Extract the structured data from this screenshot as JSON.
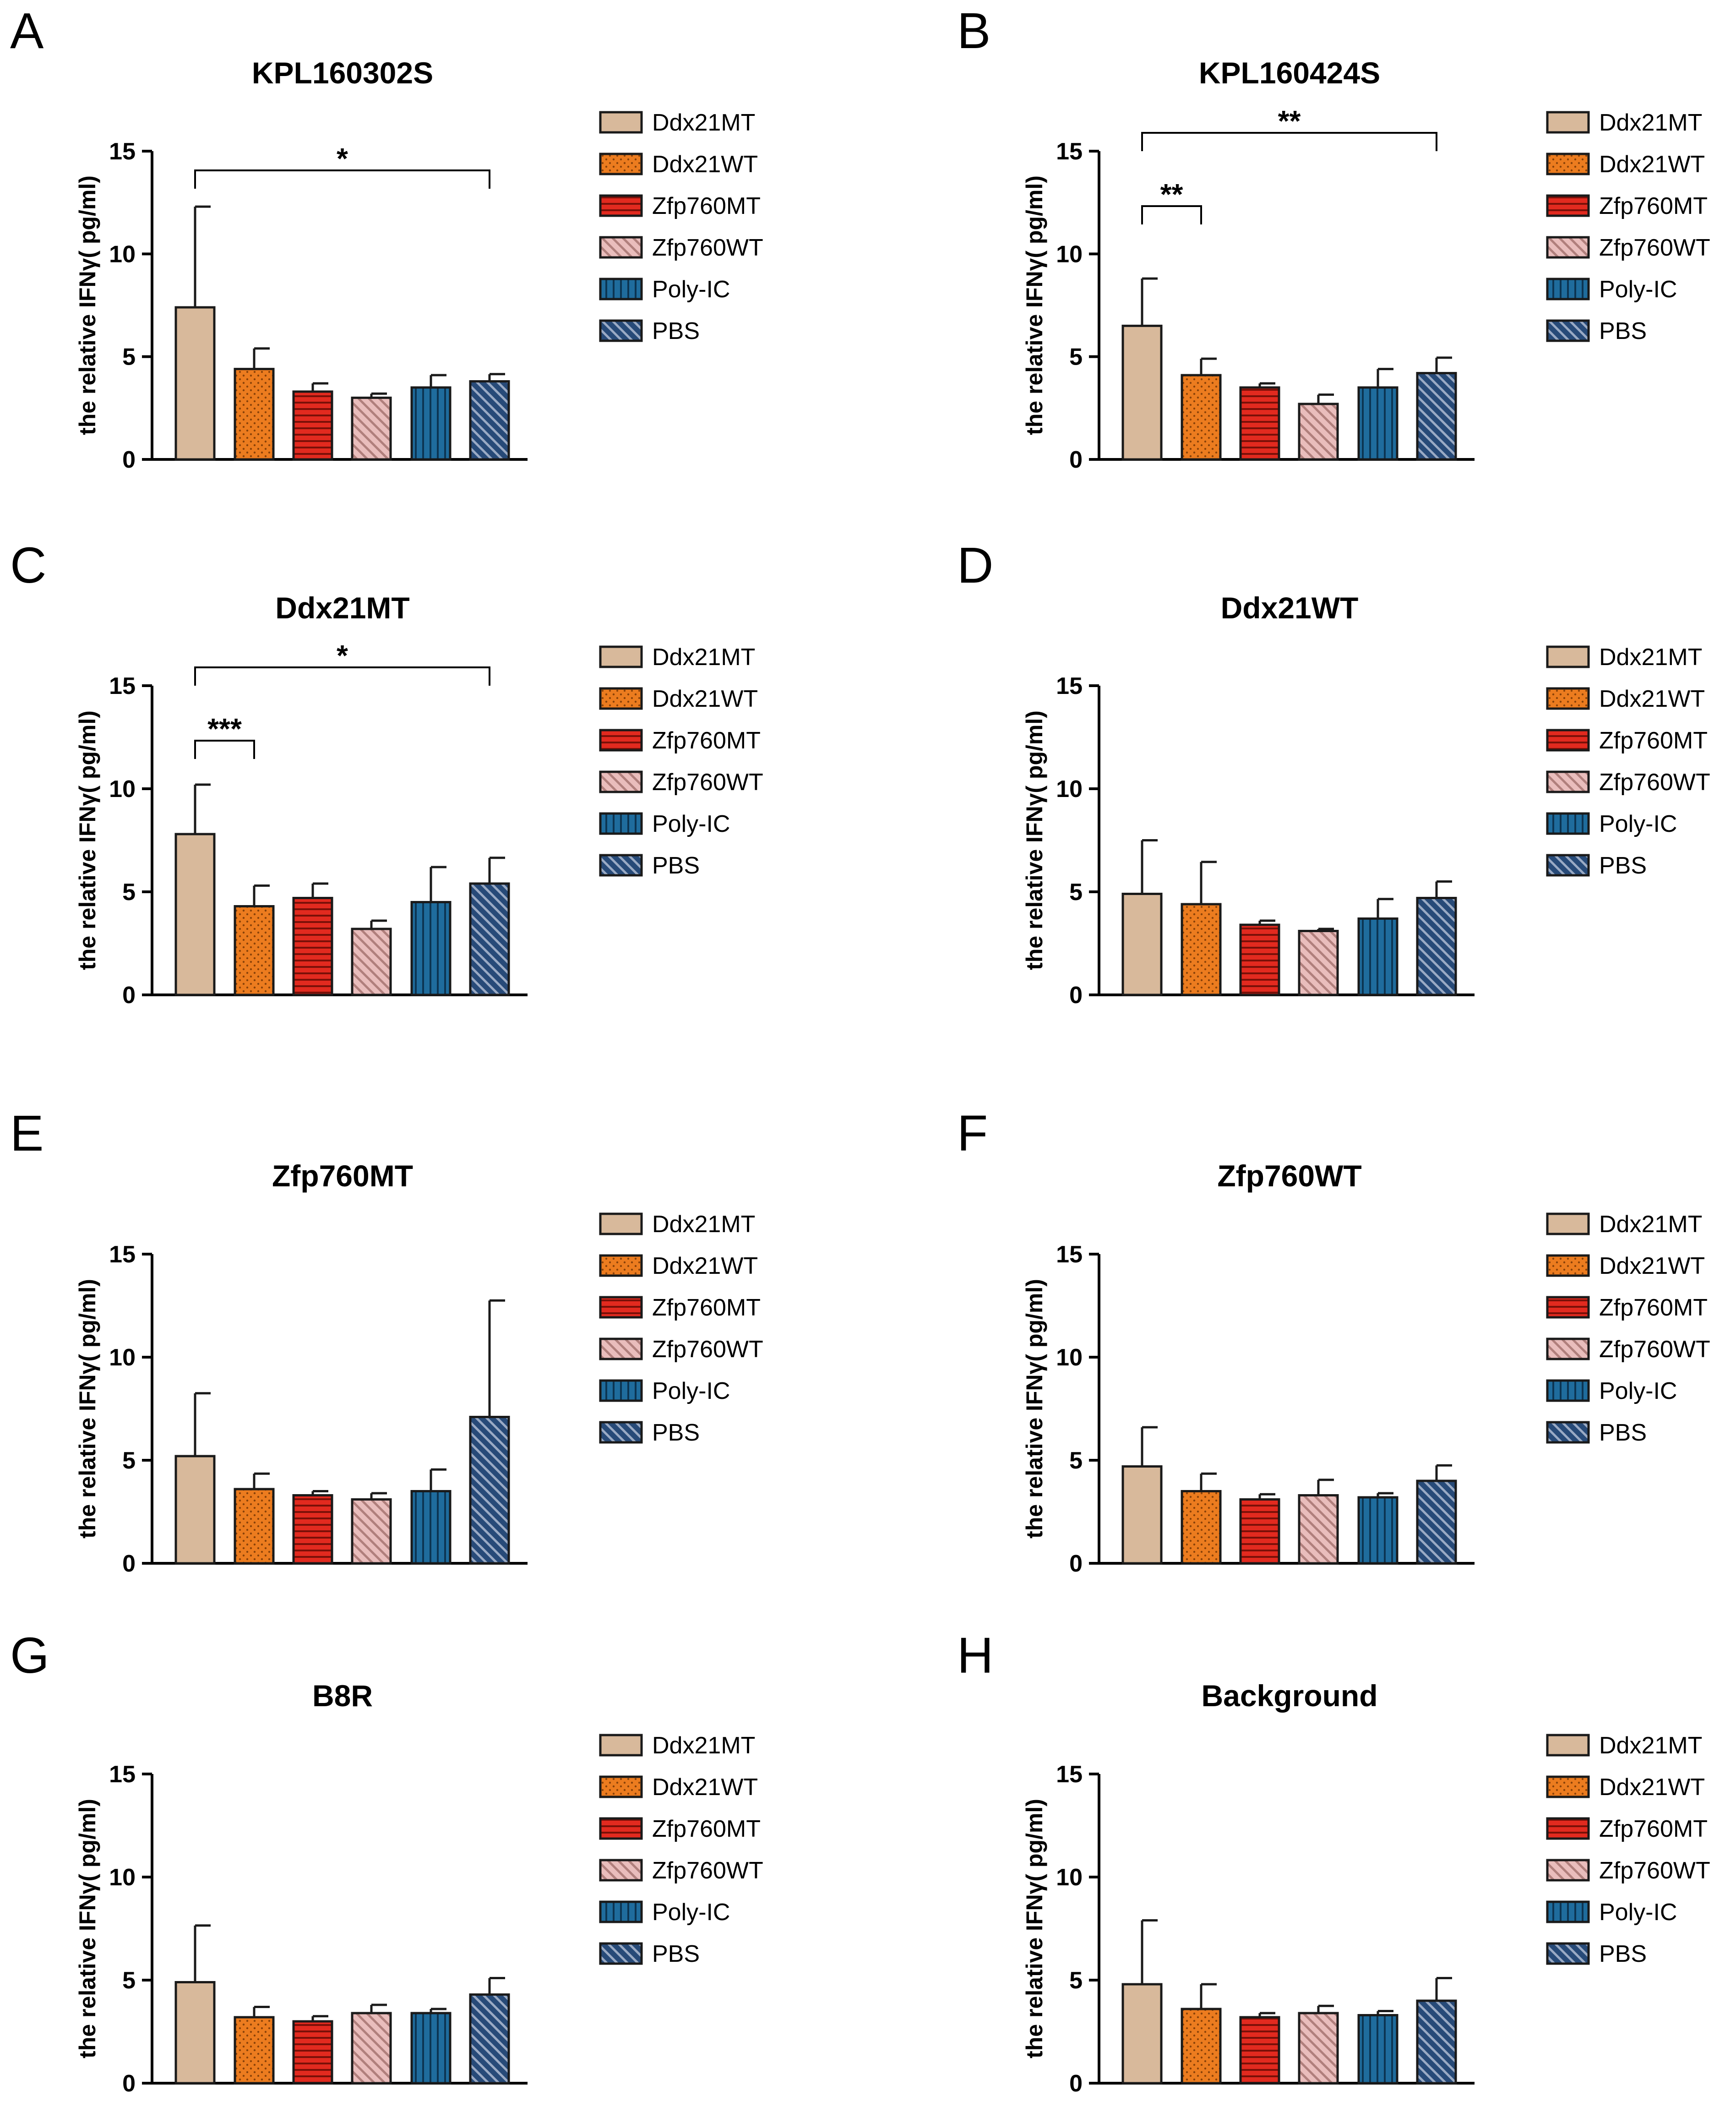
{
  "chart_data": [
    {
      "panel": "A",
      "type": "bar",
      "title": "KPL160302S",
      "ylabel": "the relative IFNγ( pg/ml)",
      "ylim": [
        0,
        15
      ],
      "yticks": [
        "0",
        "5",
        "10",
        "15"
      ],
      "categories": [
        "Ddx21MT",
        "Ddx21WT",
        "Zfp760MT",
        "Zfp760WT",
        "Poly-IC",
        "PBS"
      ],
      "values": [
        7.4,
        4.4,
        3.3,
        3.0,
        3.5,
        3.8
      ],
      "errors": [
        4.9,
        1.0,
        0.4,
        0.2,
        0.6,
        0.35
      ],
      "legend": [
        "Ddx21MT",
        "Ddx21WT",
        "Zfp760MT",
        "Zfp760WT",
        "Poly-IC",
        "PBS"
      ],
      "significance": [
        {
          "from": 0,
          "to": 5,
          "label": "*"
        }
      ]
    },
    {
      "panel": "B",
      "type": "bar",
      "title": "KPL160424S",
      "ylabel": "the relative IFNγ( pg/ml)",
      "ylim": [
        0,
        15
      ],
      "yticks": [
        "0",
        "5",
        "10",
        "15"
      ],
      "categories": [
        "Ddx21MT",
        "Ddx21WT",
        "Zfp760MT",
        "Zfp760WT",
        "Poly-IC",
        "PBS"
      ],
      "values": [
        6.5,
        4.1,
        3.5,
        2.7,
        3.5,
        4.2
      ],
      "errors": [
        2.3,
        0.8,
        0.2,
        0.45,
        0.9,
        0.75
      ],
      "legend": [
        "Ddx21MT",
        "Ddx21WT",
        "Zfp760MT",
        "Zfp760WT",
        "Poly-IC",
        "PBS"
      ],
      "significance": [
        {
          "from": 0,
          "to": 1,
          "label": "**"
        },
        {
          "from": 0,
          "to": 5,
          "label": "**"
        }
      ]
    },
    {
      "panel": "C",
      "type": "bar",
      "title": "Ddx21MT",
      "ylabel": "the relative IFNγ( pg/ml)",
      "ylim": [
        0,
        15
      ],
      "yticks": [
        "0",
        "5",
        "10",
        "15"
      ],
      "categories": [
        "Ddx21MT",
        "Ddx21WT",
        "Zfp760MT",
        "Zfp760WT",
        "Poly-IC",
        "PBS"
      ],
      "values": [
        7.8,
        4.3,
        4.7,
        3.2,
        4.5,
        5.4
      ],
      "errors": [
        2.4,
        1.0,
        0.7,
        0.4,
        1.7,
        1.25
      ],
      "legend": [
        "Ddx21MT",
        "Ddx21WT",
        "Zfp760MT",
        "Zfp760WT",
        "Poly-IC",
        "PBS"
      ],
      "significance": [
        {
          "from": 0,
          "to": 1,
          "label": "***"
        },
        {
          "from": 0,
          "to": 5,
          "label": "*"
        }
      ]
    },
    {
      "panel": "D",
      "type": "bar",
      "title": "Ddx21WT",
      "ylabel": "the relative IFNγ( pg/ml)",
      "ylim": [
        0,
        15
      ],
      "yticks": [
        "0",
        "5",
        "10",
        "15"
      ],
      "categories": [
        "Ddx21MT",
        "Ddx21WT",
        "Zfp760MT",
        "Zfp760WT",
        "Poly-IC",
        "PBS"
      ],
      "values": [
        4.9,
        4.4,
        3.4,
        3.1,
        3.7,
        4.7
      ],
      "errors": [
        2.6,
        2.05,
        0.2,
        0.1,
        0.95,
        0.8
      ],
      "legend": [
        "Ddx21MT",
        "Ddx21WT",
        "Zfp760MT",
        "Zfp760WT",
        "Poly-IC",
        "PBS"
      ],
      "significance": []
    },
    {
      "panel": "E",
      "type": "bar",
      "title": "Zfp760MT",
      "ylabel": "the relative IFNγ( pg/ml)",
      "ylim": [
        0,
        15
      ],
      "yticks": [
        "0",
        "5",
        "10",
        "15"
      ],
      "categories": [
        "Ddx21MT",
        "Ddx21WT",
        "Zfp760MT",
        "Zfp760WT",
        "Poly-IC",
        "PBS"
      ],
      "values": [
        5.2,
        3.6,
        3.3,
        3.1,
        3.5,
        7.1
      ],
      "errors": [
        3.05,
        0.75,
        0.2,
        0.3,
        1.05,
        5.65
      ],
      "legend": [
        "Ddx21MT",
        "Ddx21WT",
        "Zfp760MT",
        "Zfp760WT",
        "Poly-IC",
        "PBS"
      ],
      "significance": []
    },
    {
      "panel": "F",
      "type": "bar",
      "title": "Zfp760WT",
      "ylabel": "the relative IFNγ( pg/ml)",
      "ylim": [
        0,
        15
      ],
      "yticks": [
        "0",
        "5",
        "10",
        "15"
      ],
      "categories": [
        "Ddx21MT",
        "Ddx21WT",
        "Zfp760MT",
        "Zfp760WT",
        "Poly-IC",
        "PBS"
      ],
      "values": [
        4.7,
        3.5,
        3.1,
        3.3,
        3.2,
        4.0
      ],
      "errors": [
        1.9,
        0.85,
        0.25,
        0.75,
        0.2,
        0.75
      ],
      "legend": [
        "Ddx21MT",
        "Ddx21WT",
        "Zfp760MT",
        "Zfp760WT",
        "Poly-IC",
        "PBS"
      ],
      "significance": []
    },
    {
      "panel": "G",
      "type": "bar",
      "title": "B8R",
      "ylabel": "the relative IFNγ( pg/ml)",
      "ylim": [
        0,
        15
      ],
      "yticks": [
        "0",
        "5",
        "10",
        "15"
      ],
      "categories": [
        "Ddx21MT",
        "Ddx21WT",
        "Zfp760MT",
        "Zfp760WT",
        "Poly-IC",
        "PBS"
      ],
      "values": [
        4.9,
        3.2,
        3.0,
        3.4,
        3.4,
        4.3
      ],
      "errors": [
        2.75,
        0.5,
        0.25,
        0.4,
        0.2,
        0.8
      ],
      "legend": [
        "Ddx21MT",
        "Ddx21WT",
        "Zfp760MT",
        "Zfp760WT",
        "Poly-IC",
        "PBS"
      ],
      "significance": []
    },
    {
      "panel": "H",
      "type": "bar",
      "title": "Background",
      "ylabel": "the relative IFNγ( pg/ml)",
      "ylim": [
        0,
        15
      ],
      "yticks": [
        "0",
        "5",
        "10",
        "15"
      ],
      "categories": [
        "Ddx21MT",
        "Ddx21WT",
        "Zfp760MT",
        "Zfp760WT",
        "Poly-IC",
        "PBS"
      ],
      "values": [
        4.8,
        3.6,
        3.2,
        3.4,
        3.3,
        4.0
      ],
      "errors": [
        3.1,
        1.2,
        0.2,
        0.35,
        0.2,
        1.1
      ],
      "legend": [
        "Ddx21MT",
        "Ddx21WT",
        "Zfp760MT",
        "Zfp760WT",
        "Poly-IC",
        "PBS"
      ],
      "significance": []
    }
  ],
  "series_styles": [
    {
      "name": "Ddx21MT",
      "color": "#d8b99b",
      "pattern": "solid"
    },
    {
      "name": "Ddx21WT",
      "color": "#ec7c1f",
      "pattern": "dots"
    },
    {
      "name": "Zfp760MT",
      "color": "#e22a1f",
      "pattern": "horizontal-lines"
    },
    {
      "name": "Zfp760WT",
      "color": "#e9bdbc",
      "pattern": "diagonal-lines"
    },
    {
      "name": "Poly-IC",
      "color": "#1f6c9d",
      "pattern": "vertical-lines"
    },
    {
      "name": "PBS",
      "color": "#274a78",
      "pattern": "diagonal-lines"
    }
  ]
}
